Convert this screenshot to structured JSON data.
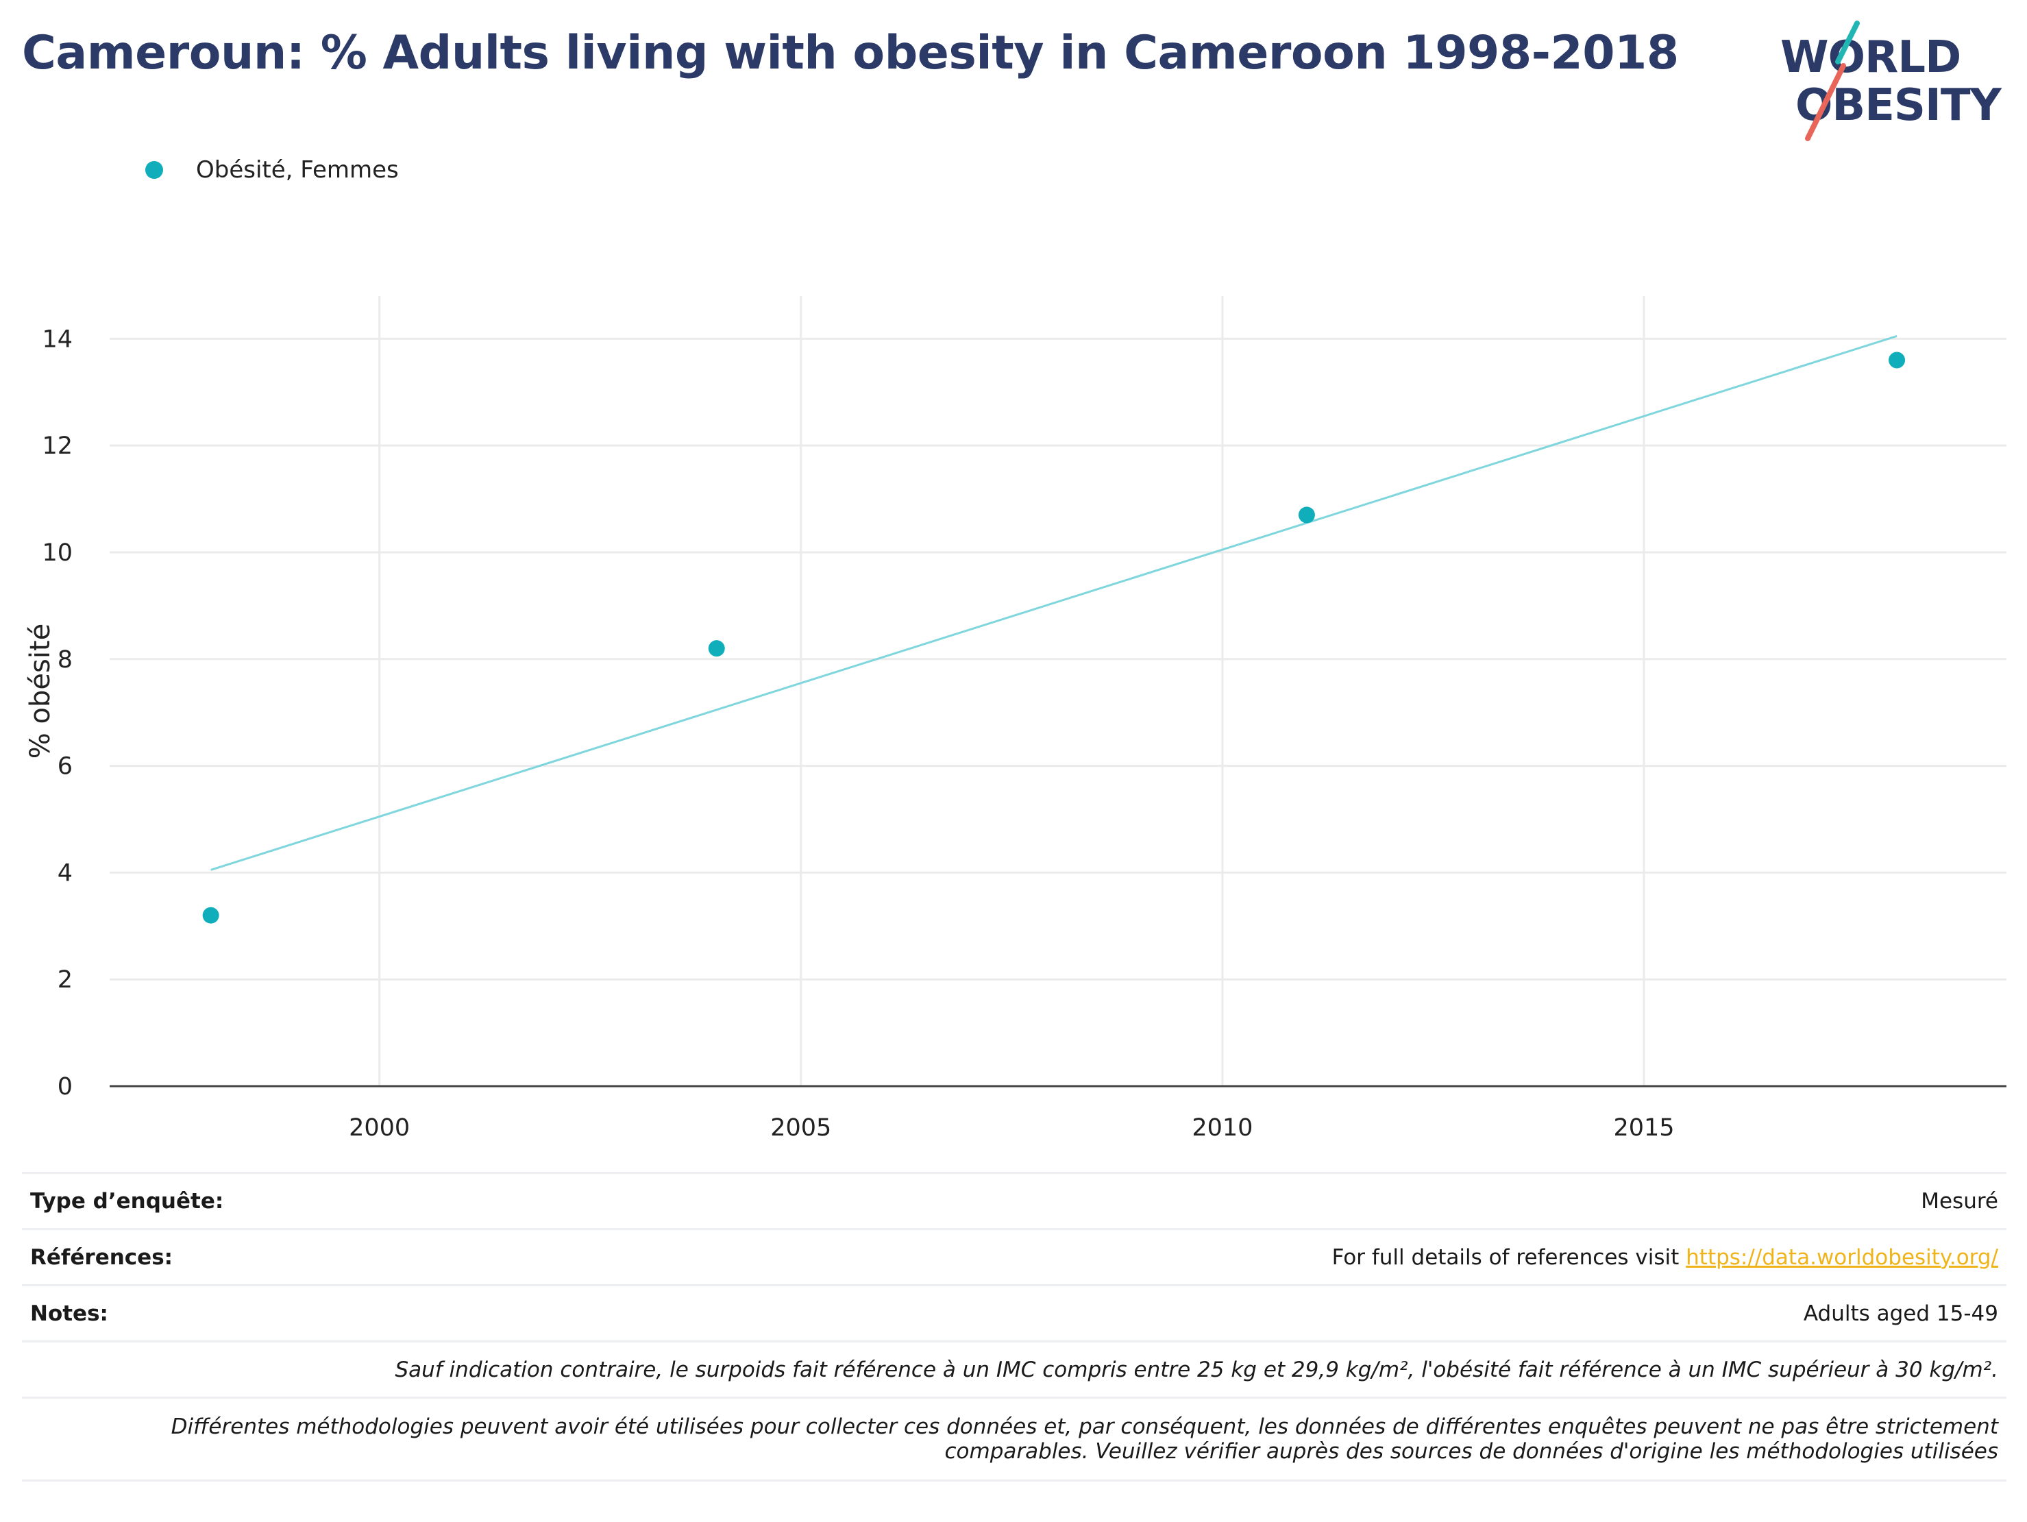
{
  "header": {
    "title": "Cameroun: % Adults living with obesity in Cameroon 1998-2018",
    "logo_line1": "WORLD",
    "logo_line2": "OBESITY",
    "logo_accent_teal": "#21b6b3",
    "logo_accent_coral": "#e8655a"
  },
  "legend": {
    "label": "Obésité, Femmes",
    "marker_color": "#10adbb"
  },
  "chart_data": {
    "type": "scatter",
    "title": "Cameroun: % Adults living with obesity in Cameroon 1998-2018",
    "xlabel": "",
    "ylabel": "% obésité",
    "xlim": [
      1996.8,
      2019.3
    ],
    "ylim": [
      0,
      14.8
    ],
    "x_ticks": [
      2000,
      2005,
      2010,
      2015
    ],
    "y_ticks": [
      0,
      2,
      4,
      6,
      8,
      10,
      12,
      14
    ],
    "grid": true,
    "legend_position": "top-left",
    "series": [
      {
        "name": "Obésité, Femmes",
        "color": "#10adbb",
        "x": [
          1998,
          2004,
          2011,
          2018
        ],
        "y": [
          3.2,
          8.2,
          10.7,
          13.6
        ]
      }
    ],
    "trendline": {
      "color": "#7fd6dc",
      "x": [
        1998,
        2018
      ],
      "y": [
        4.05,
        14.05
      ]
    }
  },
  "info_table": {
    "rows": [
      {
        "key": "Type d’enquête:",
        "value": "Mesuré"
      },
      {
        "key": "Références:",
        "value_prefix": "For full details of references visit ",
        "link": "https://data.worldobesity.org/"
      },
      {
        "key": "Notes:",
        "value": "Adults aged 15-49"
      },
      {
        "key": "",
        "value": "Sauf indication contraire, le surpoids fait référence à un IMC compris entre 25 kg et 29,9 kg/m², l'obésité fait référence à un IMC supérieur à 30 kg/m²."
      },
      {
        "key": "",
        "value_line1": "Différentes méthodologies peuvent avoir été utilisées pour collecter ces données et, par conséquent, les données de différentes enquêtes peuvent ne pas être strictement",
        "value_line2": "comparables. Veuillez vérifier auprès des sources de données d'origine les méthodologies utilisées"
      }
    ],
    "link_color": "#f0b41b"
  }
}
